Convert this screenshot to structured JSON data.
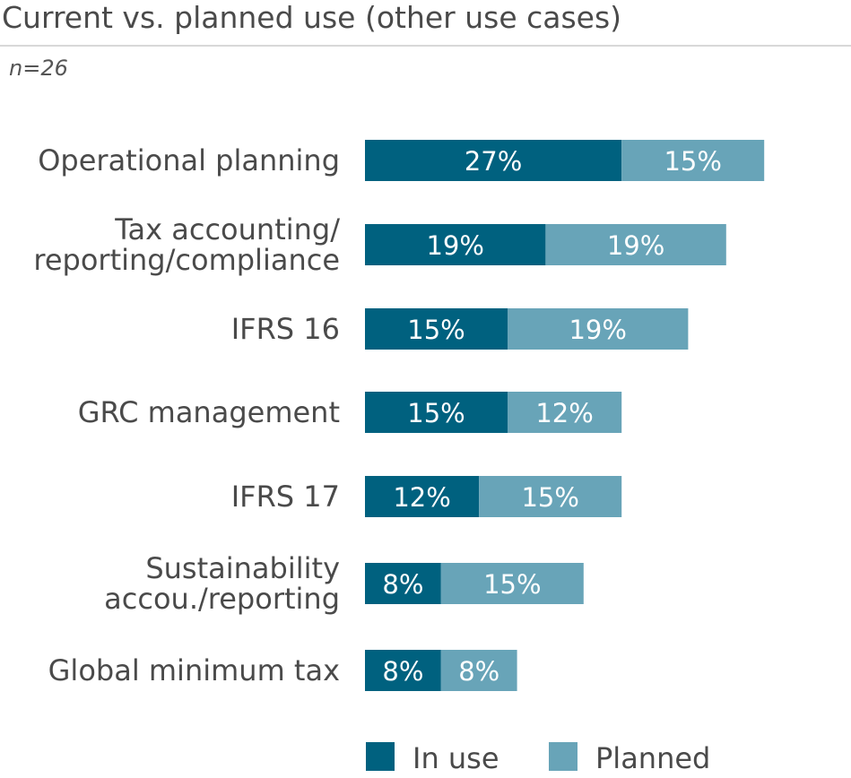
{
  "chart_data": {
    "type": "bar",
    "orientation": "horizontal",
    "stacked": true,
    "title": "Current vs. planned use (other use cases)",
    "subtitle": "n=26",
    "categories": [
      [
        "Operational planning"
      ],
      [
        "Tax accounting/",
        "reporting/compliance"
      ],
      [
        "IFRS 16"
      ],
      [
        "GRC management"
      ],
      [
        "IFRS 17"
      ],
      [
        "Sustainability",
        "accou./reporting"
      ],
      [
        "Global minimum tax"
      ]
    ],
    "series": [
      {
        "name": "In use",
        "color": "#00617f",
        "values": [
          27,
          19,
          15,
          15,
          12,
          8,
          8
        ]
      },
      {
        "name": "Planned",
        "color": "#68a4b8",
        "values": [
          15,
          19,
          19,
          12,
          15,
          15,
          8
        ]
      }
    ],
    "value_suffix": "%",
    "legend_position": "bottom",
    "grid": false
  }
}
